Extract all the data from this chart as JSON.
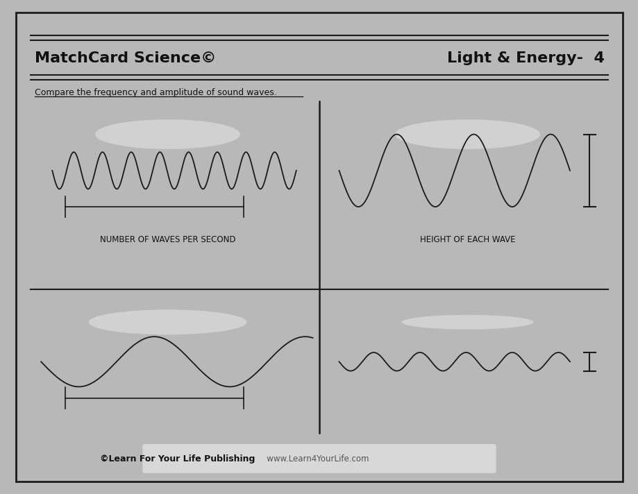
{
  "title_left": "MatchCard Science©",
  "title_right": "Light & Energy-  4",
  "subtitle": "Compare the frequency and amplitude of sound waves.",
  "label_top_left": "NUMBER OF WAVES PER SECOND",
  "label_top_right": "HEIGHT OF EACH WAVE",
  "footer_bold": "©Learn For Your Life Publishing",
  "footer_normal": "   www.Learn4YourLife.com",
  "bg_color": "#b8b8b8",
  "card_color": "#ffffff",
  "border_color": "#1a1a1a",
  "ellipse_color": "#d4d4d4",
  "wave_color": "#1a1a1a",
  "footer_bg": "#d8d8d8"
}
